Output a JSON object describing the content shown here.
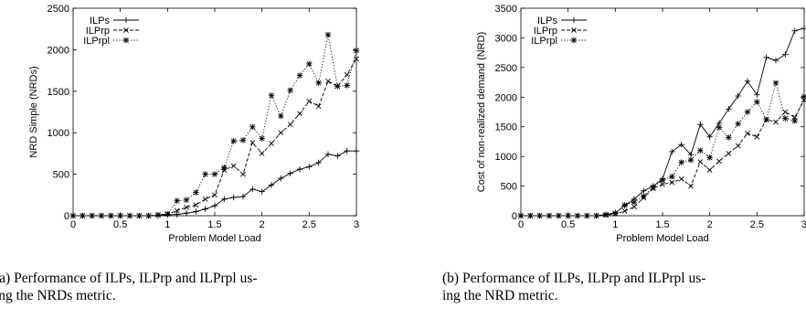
{
  "chart_data": [
    {
      "type": "line",
      "ylabel": "NRD Simple (NRDs)",
      "xlabel": "Problem Model Load",
      "xlim": [
        0,
        3
      ],
      "ylim": [
        0,
        2500
      ],
      "xticks": [
        "0",
        "0.5",
        "1",
        "1.5",
        "2",
        "2.5",
        "3"
      ],
      "yticks": [
        "0",
        "500",
        "1000",
        "1500",
        "2000",
        "2500"
      ],
      "legend_position": "top-left",
      "grid": false,
      "x": [
        0,
        0.1,
        0.2,
        0.3,
        0.4,
        0.5,
        0.6,
        0.7,
        0.8,
        0.9,
        1.0,
        1.1,
        1.2,
        1.3,
        1.4,
        1.5,
        1.6,
        1.7,
        1.8,
        1.9,
        2.0,
        2.1,
        2.2,
        2.3,
        2.4,
        2.5,
        2.6,
        2.7,
        2.8,
        2.9,
        3.0
      ],
      "series": [
        {
          "name": "ILPs",
          "marker": "plus",
          "dash": "solid",
          "values": [
            0,
            0,
            0,
            0,
            0,
            0,
            0,
            0,
            0,
            0,
            10,
            15,
            30,
            50,
            80,
            120,
            200,
            220,
            230,
            320,
            290,
            370,
            450,
            510,
            560,
            590,
            640,
            740,
            720,
            780,
            780
          ]
        },
        {
          "name": "ILPrp",
          "marker": "x",
          "dash": "dashed",
          "values": [
            0,
            0,
            0,
            0,
            0,
            0,
            0,
            0,
            0,
            10,
            20,
            60,
            100,
            130,
            200,
            250,
            550,
            600,
            500,
            880,
            750,
            870,
            1000,
            1100,
            1230,
            1380,
            1320,
            1620,
            1560,
            1700,
            1890
          ]
        },
        {
          "name": "ILPrpl",
          "marker": "star",
          "dash": "dotted",
          "values": [
            0,
            0,
            0,
            0,
            0,
            0,
            0,
            0,
            0,
            10,
            20,
            180,
            190,
            280,
            500,
            500,
            580,
            900,
            910,
            1070,
            930,
            1450,
            1200,
            1510,
            1690,
            1830,
            1600,
            2180,
            1560,
            1570,
            1990
          ]
        }
      ]
    },
    {
      "type": "line",
      "ylabel": "Cost of non-realized demand (NRD)",
      "xlabel": "Problem Model Load",
      "xlim": [
        0,
        3
      ],
      "ylim": [
        0,
        3500
      ],
      "xticks": [
        "0",
        "0.5",
        "1",
        "1.5",
        "2",
        "2.5",
        "3"
      ],
      "yticks": [
        "0",
        "500",
        "1000",
        "1500",
        "2000",
        "2500",
        "3000",
        "3500"
      ],
      "legend_position": "top-left",
      "grid": false,
      "x": [
        0,
        0.1,
        0.2,
        0.3,
        0.4,
        0.5,
        0.6,
        0.7,
        0.8,
        0.9,
        1.0,
        1.1,
        1.2,
        1.3,
        1.4,
        1.5,
        1.6,
        1.7,
        1.8,
        1.9,
        2.0,
        2.1,
        2.2,
        2.3,
        2.4,
        2.5,
        2.6,
        2.7,
        2.8,
        2.9,
        3.0
      ],
      "series": [
        {
          "name": "ILPs",
          "marker": "plus",
          "dash": "solid",
          "values": [
            0,
            0,
            0,
            0,
            0,
            0,
            0,
            0,
            0,
            20,
            50,
            170,
            280,
            420,
            500,
            620,
            1080,
            1200,
            1030,
            1540,
            1330,
            1560,
            1800,
            2020,
            2270,
            2040,
            2670,
            2620,
            2720,
            3120,
            3160
          ]
        },
        {
          "name": "ILPrp",
          "marker": "x",
          "dash": "dashed",
          "values": [
            0,
            0,
            0,
            0,
            0,
            0,
            0,
            0,
            0,
            10,
            30,
            80,
            150,
            300,
            460,
            530,
            560,
            620,
            500,
            910,
            770,
            920,
            1050,
            1180,
            1390,
            1330,
            1620,
            1580,
            1750,
            1660,
            1950
          ]
        },
        {
          "name": "ILPrpl",
          "marker": "star",
          "dash": "dotted",
          "values": [
            0,
            0,
            0,
            0,
            0,
            0,
            0,
            0,
            0,
            20,
            40,
            180,
            230,
            330,
            480,
            600,
            660,
            900,
            940,
            1100,
            980,
            1490,
            1320,
            1550,
            1750,
            1920,
            1620,
            2240,
            1640,
            1600,
            2010
          ]
        }
      ]
    }
  ],
  "captions": {
    "a": "(a) Performance of ILPs, ILPrp and ILPrpl us-\ning the NRDs metric.",
    "b": "(b) Performance of ILPs, ILPrp and ILPrpl us-\ning the NRD metric."
  }
}
